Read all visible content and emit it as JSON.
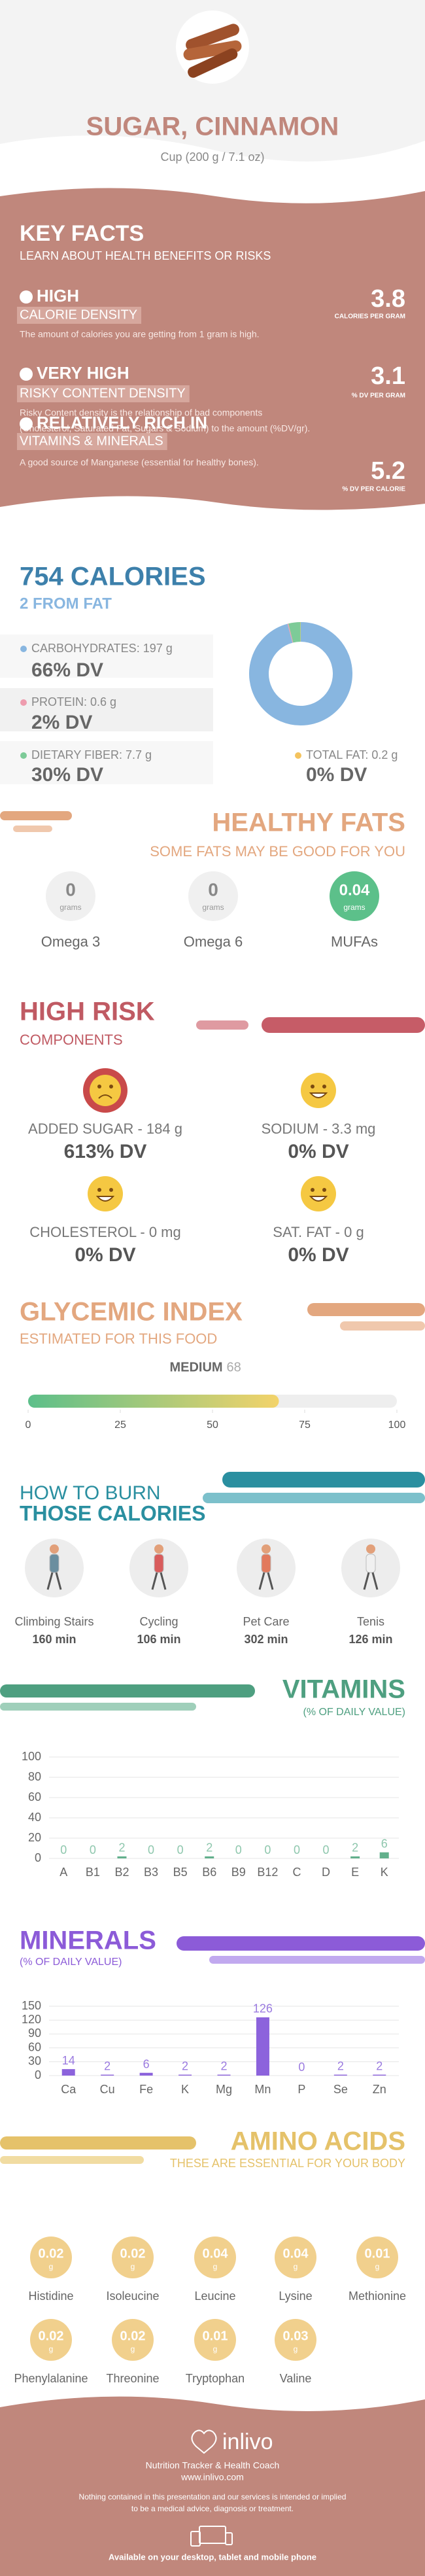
{
  "header": {
    "title": "SUGAR, CINNAMON",
    "serving": "Cup (200 g / 7.1 oz)"
  },
  "key_facts": {
    "title": "KEY FACTS",
    "subtitle": "LEARN ABOUT HEALTH BENEFITS OR RISKS",
    "facts": [
      {
        "level": "HIGH",
        "label": "CALORIE DENSITY",
        "description": [
          "The amount of calories you are getting from 1 gram is high."
        ],
        "value": 3.8,
        "unit": "CALORIES PER GRAM"
      },
      {
        "level": "VERY HIGH",
        "label": "RISKY CONTENT DENSITY",
        "description": [
          "Risky Content density is the relationship of bad components",
          "(Cholesterol, Saturated Fat, Sugars & Sodium) to the amount (%DV/gr)."
        ],
        "value": 3.1,
        "unit": "% DV PER GRAM"
      },
      {
        "level": "RELATIVELY RICH IN",
        "label": "VITAMINS & MINERALS",
        "description": [
          "A good source of Manganese (essential for healthy bones)."
        ],
        "value": 5.2,
        "unit": "% DV PER CALORIE"
      }
    ]
  },
  "calories": {
    "title": "754 CALORIES",
    "subtitle": "2 FROM FAT",
    "nutrients": [
      {
        "label": "CARBOHYDRATES: 197 g",
        "grams": 197,
        "dv": "66% DV",
        "color": "#88b6e0"
      },
      {
        "label": "PROTEIN: 0.6 g",
        "grams": 0.6,
        "dv": "2% DV",
        "color": "#ee9cae"
      },
      {
        "label": "DIETARY FIBER: 7.7 g",
        "grams": 7.7,
        "dv": "30% DV",
        "color": "#7dcb98"
      },
      {
        "label": "TOTAL FAT: 0.2 g",
        "grams": 0.2,
        "dv": "0% DV",
        "color": "#f4c35e"
      }
    ]
  },
  "healthy_fats": {
    "title": "HEALTHY FATS",
    "subtitle": "SOME FATS MAY BE GOOD FOR YOU",
    "items": [
      {
        "name": "Omega 3",
        "amount": "0",
        "unit": "grams"
      },
      {
        "name": "Omega 6",
        "amount": "0",
        "unit": "grams"
      },
      {
        "name": "MUFAs",
        "amount": "0.04",
        "unit": "grams"
      }
    ]
  },
  "high_risk": {
    "title": "HIGH RISK",
    "subtitle": "COMPONENTS",
    "items": [
      {
        "label": "ADDED SUGAR - 184 g",
        "dv": "613% DV"
      },
      {
        "label": "SODIUM - 3.3 mg",
        "dv": "0% DV"
      },
      {
        "label": "CHOLESTEROL - 0 mg",
        "dv": "0% DV"
      },
      {
        "label": "SAT. FAT - 0 g",
        "dv": "0% DV"
      }
    ]
  },
  "glycemic_index": {
    "title": "GLYCEMIC INDEX",
    "subtitle": "ESTIMATED FOR THIS FOOD",
    "level": "MEDIUM",
    "value": 68,
    "xlim": [
      0,
      100
    ],
    "xticks": [
      0,
      25,
      50,
      75,
      100
    ]
  },
  "burn": {
    "title": [
      "HOW TO BURN",
      "THOSE CALORIES"
    ],
    "activities": [
      {
        "name": "Climbing Stairs",
        "time": "160 min"
      },
      {
        "name": "Cycling",
        "time": "106 min"
      },
      {
        "name": "Pet Care",
        "time": "302 min"
      },
      {
        "name": "Tenis",
        "time": "126 min"
      }
    ]
  },
  "vitamins": {
    "type": "bar",
    "title": "VITAMINS",
    "subtitle": "(% OF DAILY VALUE)",
    "categories": [
      "A",
      "B1",
      "B2",
      "B3",
      "B5",
      "B6",
      "B9",
      "B12",
      "C",
      "D",
      "E",
      "K"
    ],
    "values": [
      0,
      0,
      2,
      0,
      0,
      2,
      0,
      0,
      0,
      0,
      2,
      6
    ],
    "color": "#62b08c",
    "ylim": [
      0,
      100
    ],
    "yticks": [
      0,
      20,
      40,
      60,
      80,
      100
    ],
    "grid": true
  },
  "minerals": {
    "type": "bar",
    "title": "MINERALS",
    "subtitle": "(% OF DAILY VALUE)",
    "categories": [
      "Ca",
      "Cu",
      "Fe",
      "K",
      "Mg",
      "Mn",
      "P",
      "Se",
      "Zn"
    ],
    "values": [
      14,
      2,
      6,
      2,
      2,
      126,
      0,
      2,
      2
    ],
    "color": "#8c63dc",
    "ylim": [
      0,
      150
    ],
    "yticks": [
      0,
      30,
      60,
      90,
      120,
      150
    ],
    "grid": true
  },
  "amino_acids": {
    "title": "AMINO ACIDS",
    "subtitle": "THESE ARE ESSENTIAL FOR YOUR BODY",
    "items": [
      {
        "name": "Histidine",
        "amount": "0.02",
        "unit": "g"
      },
      {
        "name": "Isoleucine",
        "amount": "0.02",
        "unit": "g"
      },
      {
        "name": "Leucine",
        "amount": "0.04",
        "unit": "g"
      },
      {
        "name": "Lysine",
        "amount": "0.04",
        "unit": "g"
      },
      {
        "name": "Methionine",
        "amount": "0.01",
        "unit": "g"
      },
      {
        "name": "Phenylalanine",
        "amount": "0.02",
        "unit": "g"
      },
      {
        "name": "Threonine",
        "amount": "0.02",
        "unit": "g"
      },
      {
        "name": "Tryptophan",
        "amount": "0.01",
        "unit": "g"
      },
      {
        "name": "Valine",
        "amount": "0.03",
        "unit": "g"
      }
    ]
  },
  "footer": {
    "brand": "inlivo",
    "tagline": "Nutrition Tracker & Health Coach",
    "url": "www.inlivo.com",
    "disclaimer": [
      "Nothing contained in this presentation and our services is intended or implied",
      "to be a medical advice, diagnosis or treatment."
    ],
    "availability": "Available on your desktop, tablet and mobile phone"
  }
}
